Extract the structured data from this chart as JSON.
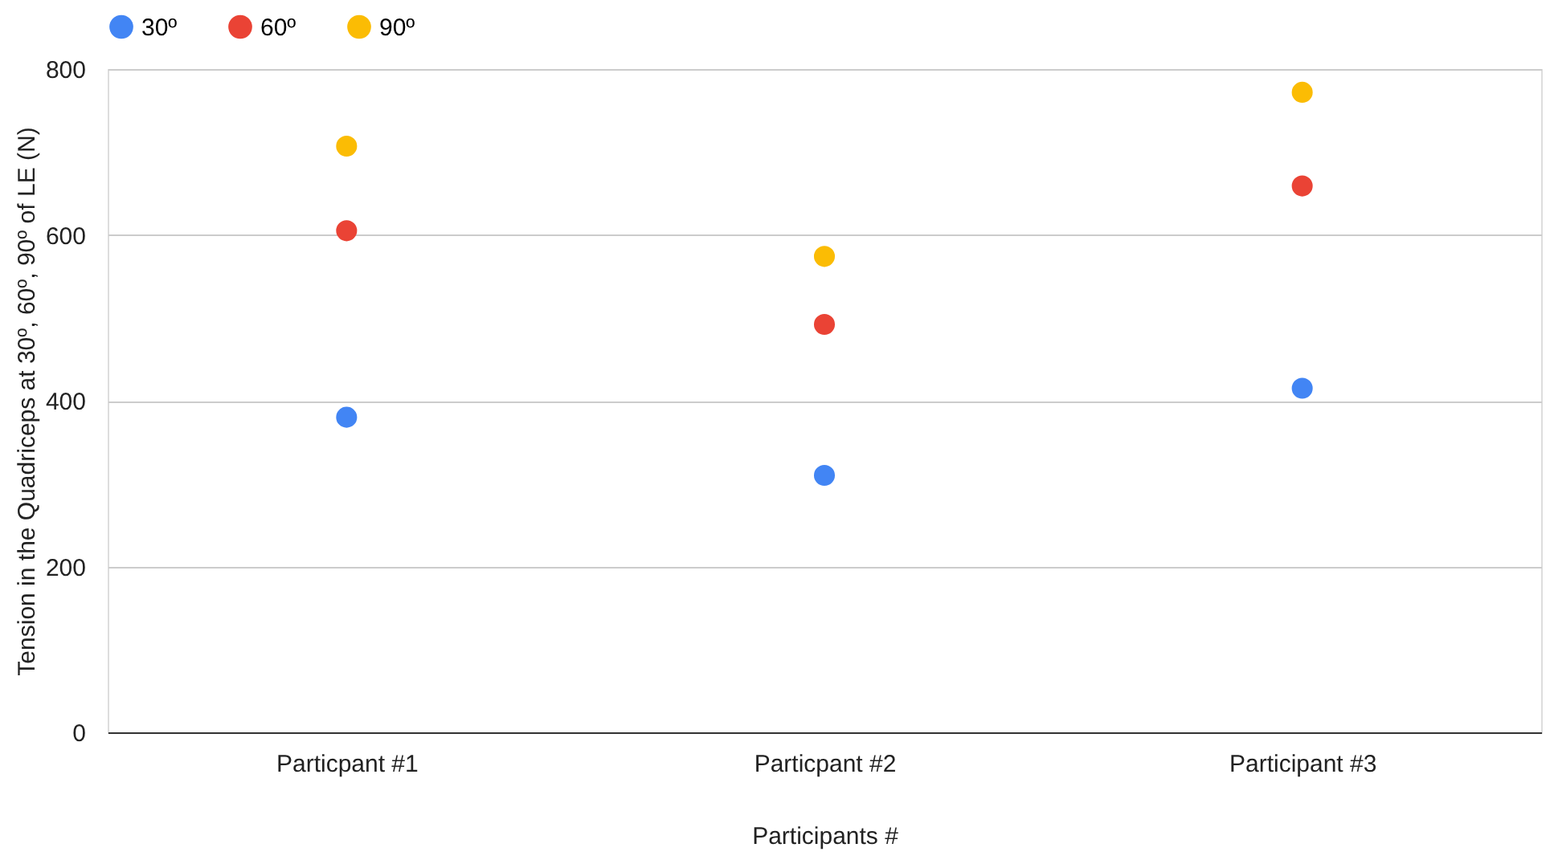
{
  "chart_data": {
    "type": "scatter",
    "xlabel": "Participants #",
    "ylabel": "Tension in the Quadriceps at 30º, 60º, 90º of LE (N)",
    "categories": [
      "Particpant #1",
      "Particpant #2",
      "Participant #3"
    ],
    "series": [
      {
        "name": "30º",
        "color": "#4285f4",
        "values": [
          380,
          310,
          415
        ]
      },
      {
        "name": "60º",
        "color": "#ea4335",
        "values": [
          605,
          492,
          659
        ]
      },
      {
        "name": "90º",
        "color": "#fbbc04",
        "values": [
          707,
          574,
          772
        ]
      }
    ],
    "ylim": [
      0,
      800
    ],
    "yticks": [
      0,
      200,
      400,
      600,
      800
    ],
    "grid": "y",
    "legend": "top",
    "marker": "circle"
  }
}
